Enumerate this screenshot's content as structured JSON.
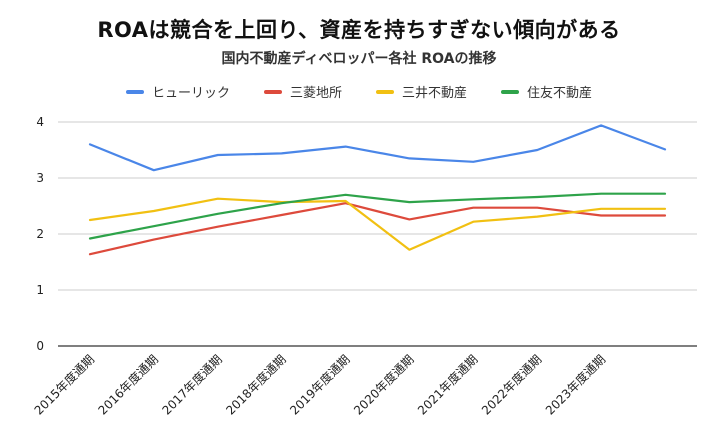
{
  "chart_data": {
    "type": "line",
    "title": "ROAは競合を上回り、資産を持ちすぎない傾向がある",
    "subtitle": "国内不動産ディベロッパー各社 ROAの推移",
    "categories": [
      "2015年度通期",
      "2016年度通期",
      "2017年度通期",
      "2018年度通期",
      "2019年度通期",
      "2020年度通期",
      "2021年度通期",
      "2022年度通期",
      "2023年度通期",
      ""
    ],
    "ylim": [
      0,
      4
    ],
    "yticks": [
      "0",
      "1",
      "2",
      "3",
      "4"
    ],
    "grid": true,
    "legend_position": "top",
    "series": [
      {
        "name": "ヒューリック",
        "color": "#4a86e8",
        "values": [
          3.6,
          3.14,
          3.41,
          3.44,
          3.56,
          3.35,
          3.29,
          3.5,
          3.94,
          3.51
        ]
      },
      {
        "name": "三菱地所",
        "color": "#dd4a3c",
        "values": [
          1.64,
          1.9,
          2.13,
          2.34,
          2.55,
          2.26,
          2.47,
          2.47,
          2.33,
          2.33
        ]
      },
      {
        "name": "三井不動産",
        "color": "#f1c012",
        "values": [
          2.25,
          2.41,
          2.63,
          2.57,
          2.59,
          1.72,
          2.22,
          2.31,
          2.45,
          2.45
        ]
      },
      {
        "name": "住友不動産",
        "color": "#2ea34a",
        "values": [
          1.92,
          2.14,
          2.36,
          2.55,
          2.7,
          2.57,
          2.62,
          2.66,
          2.72,
          2.72
        ]
      }
    ]
  }
}
